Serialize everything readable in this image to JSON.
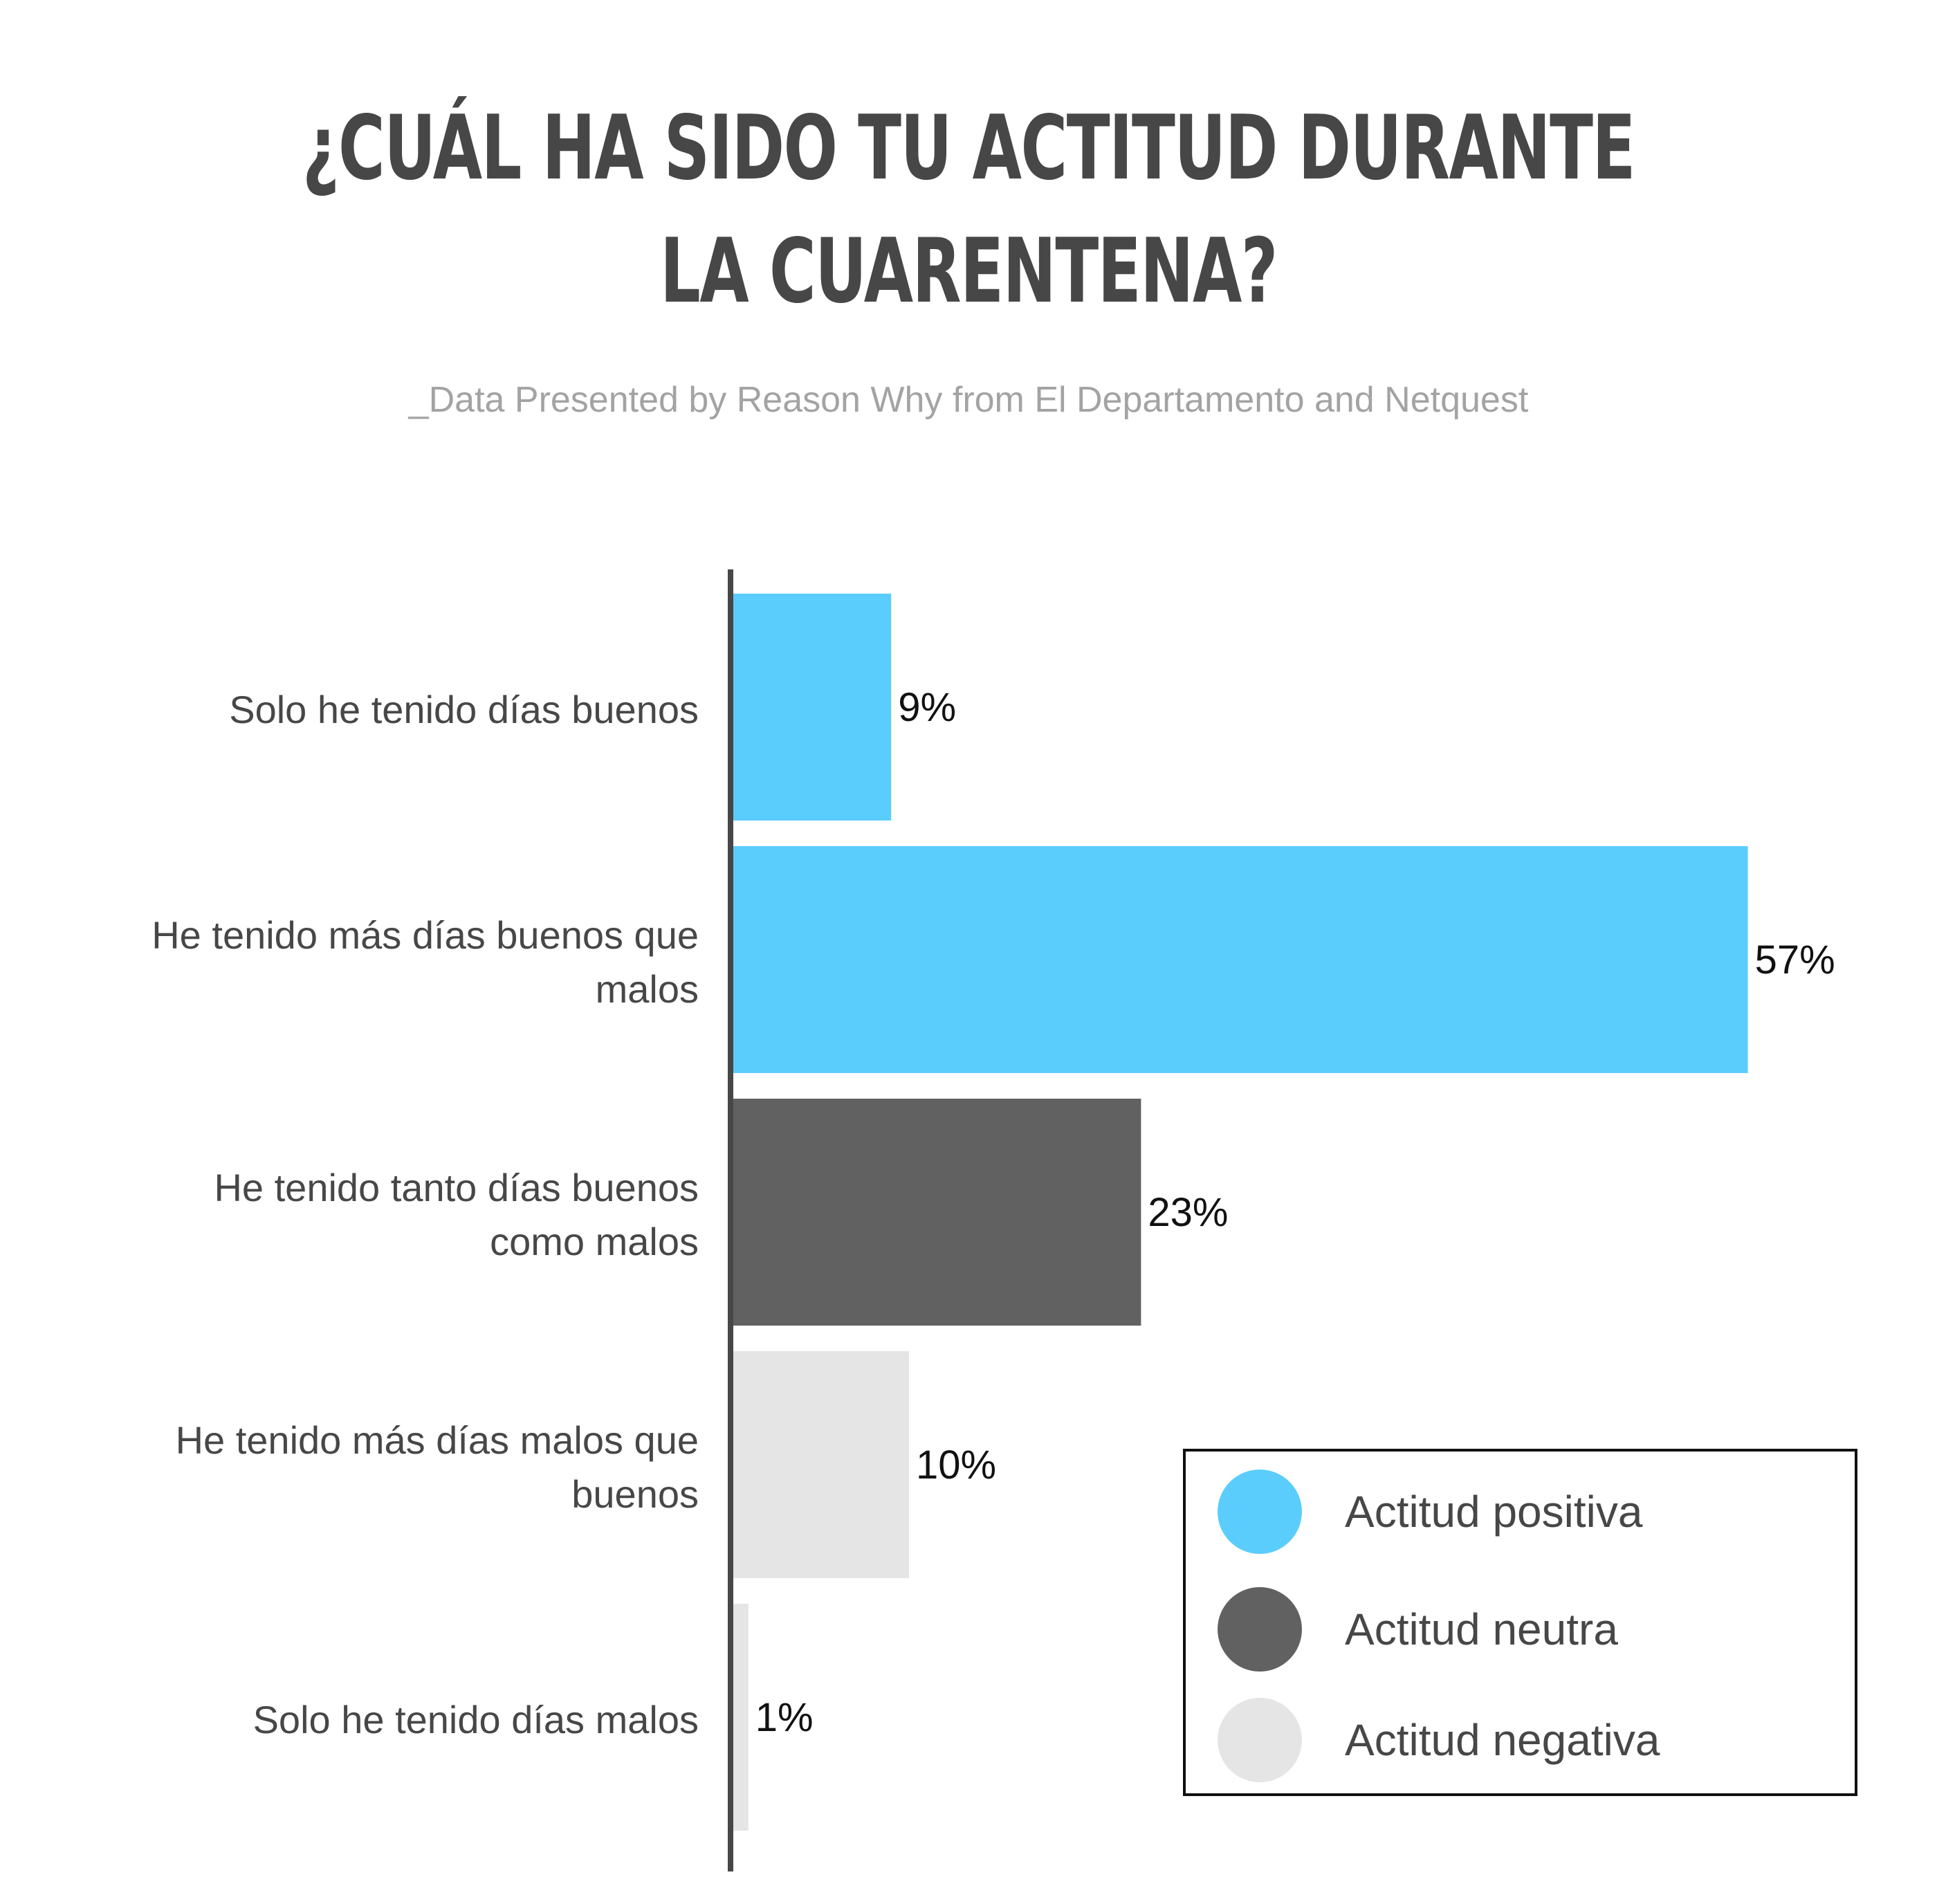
{
  "title_line1": "¿CUÁL HA SIDO TU ACTITUD DURANTE",
  "title_line2": "LA CUARENTENA?",
  "subtitle": "_Data Presented by Reason Why from El Departamento and Netquest",
  "colors": {
    "positive": "#5bcdfc",
    "neutral": "#616161",
    "negative": "#e5e5e5"
  },
  "legend": [
    {
      "label": "Actitud positiva",
      "color": "#5bcdfc"
    },
    {
      "label": "Actitud neutra",
      "color": "#616161"
    },
    {
      "label": "Actitud negativa",
      "color": "#e5e5e5"
    }
  ],
  "chart_data": {
    "type": "bar",
    "orientation": "horizontal",
    "categories": [
      [
        "Solo he tenido días buenos"
      ],
      [
        "He tenido más días buenos que",
        "malos"
      ],
      [
        "He tenido tanto días buenos",
        "como malos"
      ],
      [
        "He tenido más días malos que",
        "buenos"
      ],
      [
        "Solo he tenido días malos"
      ]
    ],
    "values": [
      9,
      57,
      23,
      10,
      1
    ],
    "value_labels": [
      "9%",
      "57%",
      "23%",
      "10%",
      "1%"
    ],
    "bar_colors": [
      "#5bcdfc",
      "#5bcdfc",
      "#616161",
      "#e5e5e5",
      "#e5e5e5"
    ],
    "unit": "%",
    "xlim": [
      0,
      60
    ],
    "grid": false,
    "legend_position": "bottom-right"
  }
}
